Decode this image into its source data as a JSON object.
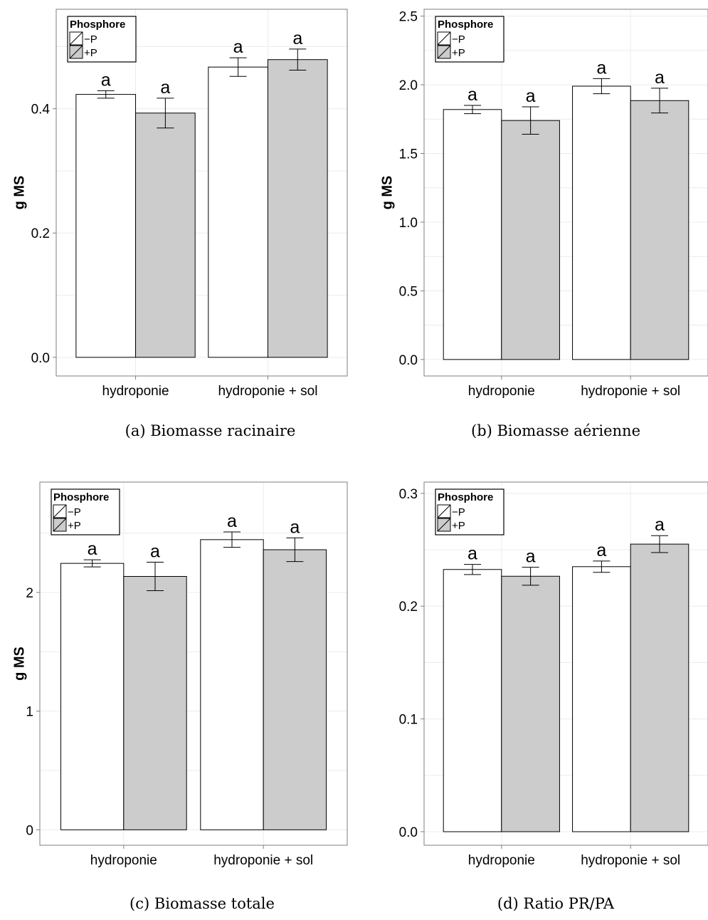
{
  "chart_data": [
    {
      "type": "bar",
      "caption": "(a) Biomasse racinaire",
      "ylabel": "g MS",
      "categories": [
        "hydroponie",
        "hydroponie + sol"
      ],
      "yticks": [
        "0.0",
        "0.2",
        "0.4"
      ],
      "ylim": [
        -0.03,
        0.56
      ],
      "legend": {
        "title": "Phosphore",
        "position": "top-left",
        "entries": [
          "−P",
          "+P"
        ]
      },
      "series": [
        {
          "name": "−P",
          "color": "#ffffff",
          "values": [
            0.423,
            0.467
          ],
          "errors": [
            0.006,
            0.015
          ],
          "labels": [
            "a",
            "a"
          ]
        },
        {
          "name": "+P",
          "color": "#cccccc",
          "values": [
            0.393,
            0.479
          ],
          "errors": [
            0.024,
            0.017
          ],
          "labels": [
            "a",
            "a"
          ]
        }
      ],
      "grid": true
    },
    {
      "type": "bar",
      "caption": "(b) Biomasse aérienne",
      "ylabel": "g MS",
      "categories": [
        "hydroponie",
        "hydroponie + sol"
      ],
      "yticks": [
        "0.0",
        "0.5",
        "1.0",
        "1.5",
        "2.0",
        "2.5"
      ],
      "ylim": [
        -0.12,
        2.55
      ],
      "legend": {
        "title": "Phosphore",
        "position": "top-left",
        "entries": [
          "−P",
          "+P"
        ]
      },
      "series": [
        {
          "name": "−P",
          "color": "#ffffff",
          "values": [
            1.82,
            1.99
          ],
          "errors": [
            0.03,
            0.055
          ],
          "labels": [
            "a",
            "a"
          ]
        },
        {
          "name": "+P",
          "color": "#cccccc",
          "values": [
            1.74,
            1.885
          ],
          "errors": [
            0.1,
            0.09
          ],
          "labels": [
            "a",
            "a"
          ]
        }
      ],
      "grid": true
    },
    {
      "type": "bar",
      "caption": "(c) Biomasse totale",
      "ylabel": "g MS",
      "categories": [
        "hydroponie",
        "hydroponie + sol"
      ],
      "yticks": [
        "0",
        "1",
        "2"
      ],
      "ylim": [
        -0.13,
        2.93
      ],
      "legend": {
        "title": "Phosphore",
        "position": "top-left",
        "entries": [
          "−P",
          "+P"
        ]
      },
      "series": [
        {
          "name": "−P",
          "color": "#ffffff",
          "values": [
            2.245,
            2.445
          ],
          "errors": [
            0.03,
            0.065
          ],
          "labels": [
            "a",
            "a"
          ]
        },
        {
          "name": "+P",
          "color": "#cccccc",
          "values": [
            2.135,
            2.36
          ],
          "errors": [
            0.12,
            0.1
          ],
          "labels": [
            "a",
            "a"
          ]
        }
      ],
      "grid": true
    },
    {
      "type": "bar",
      "caption": "(d) Ratio PR/PA",
      "ylabel": "",
      "categories": [
        "hydroponie",
        "hydroponie + sol"
      ],
      "yticks": [
        "0.0",
        "0.1",
        "0.2",
        "0.3"
      ],
      "ylim": [
        -0.012,
        0.31
      ],
      "legend": {
        "title": "Phosphore",
        "position": "top-left",
        "entries": [
          "−P",
          "+P"
        ]
      },
      "series": [
        {
          "name": "−P",
          "color": "#ffffff",
          "values": [
            0.2325,
            0.235
          ],
          "errors": [
            0.0045,
            0.005
          ],
          "labels": [
            "a",
            "a"
          ]
        },
        {
          "name": "+P",
          "color": "#cccccc",
          "values": [
            0.2265,
            0.255
          ],
          "errors": [
            0.008,
            0.0075
          ],
          "labels": [
            "a",
            "a"
          ]
        }
      ],
      "grid": true
    }
  ]
}
